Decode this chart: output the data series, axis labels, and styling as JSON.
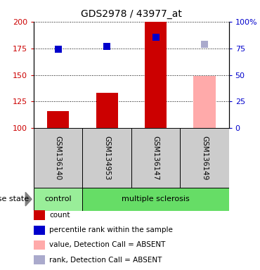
{
  "title": "GDS2978 / 43977_at",
  "samples": [
    "GSM136140",
    "GSM134953",
    "GSM136147",
    "GSM136149"
  ],
  "bar_values": [
    116,
    133,
    200,
    149
  ],
  "bar_colors": [
    "#cc0000",
    "#cc0000",
    "#cc0000",
    "#ffaaaa"
  ],
  "dot_values": [
    74,
    77,
    85,
    79
  ],
  "dot_colors": [
    "#0000cc",
    "#0000cc",
    "#0000cc",
    "#aaaacc"
  ],
  "ylim_left": [
    100,
    200
  ],
  "ylim_right": [
    0,
    100
  ],
  "yticks_left": [
    100,
    125,
    150,
    175,
    200
  ],
  "yticks_right": [
    0,
    25,
    50,
    75,
    100
  ],
  "yticklabels_right": [
    "0",
    "25",
    "50",
    "75",
    "100%"
  ],
  "disease_groups": [
    {
      "label": "control",
      "indices": [
        0
      ],
      "color": "#99ee99"
    },
    {
      "label": "multiple sclerosis",
      "indices": [
        1,
        2,
        3
      ],
      "color": "#66dd66"
    }
  ],
  "legend_items": [
    {
      "color": "#cc0000",
      "label": "count"
    },
    {
      "color": "#0000cc",
      "label": "percentile rank within the sample"
    },
    {
      "color": "#ffaaaa",
      "label": "value, Detection Call = ABSENT"
    },
    {
      "color": "#aaaacc",
      "label": "rank, Detection Call = ABSENT"
    }
  ],
  "disease_state_label": "disease state",
  "bar_width": 0.45,
  "dot_size": 55,
  "gray_color": "#cccccc",
  "left_tick_color": "#cc0000",
  "right_tick_color": "#0000cc"
}
